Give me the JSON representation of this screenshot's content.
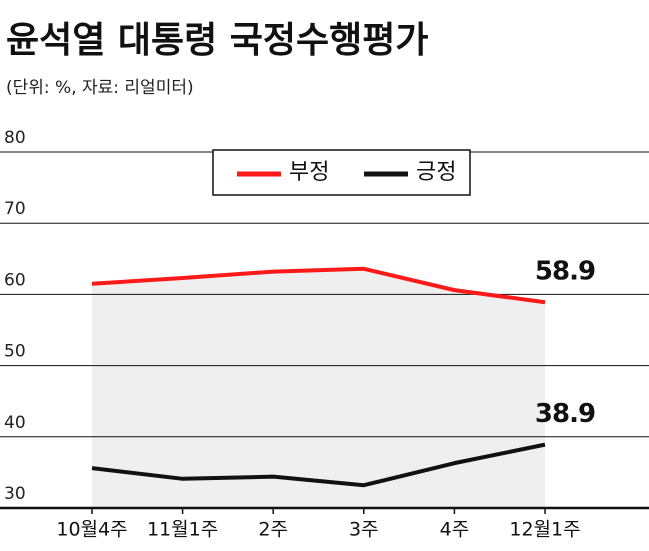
{
  "chart_data": {
    "type": "line",
    "title": "윤석열 대통령 국정수행평가",
    "subtitle": "(단위: %, 자료: 리얼미터)",
    "categories": [
      "10월4주",
      "11월1주",
      "2주",
      "3주",
      "4주",
      "12월1주"
    ],
    "series": [
      {
        "name": "부정",
        "color": "#ff1a1a",
        "values": [
          61.5,
          62.3,
          63.2,
          63.6,
          60.6,
          58.9
        ]
      },
      {
        "name": "긍정",
        "color": "#111111",
        "values": [
          35.6,
          34.1,
          34.4,
          33.2,
          36.3,
          38.9
        ]
      }
    ],
    "ylim": [
      30,
      80
    ],
    "yticks": [
      30,
      40,
      50,
      60,
      70,
      80
    ],
    "grid": true
  }
}
